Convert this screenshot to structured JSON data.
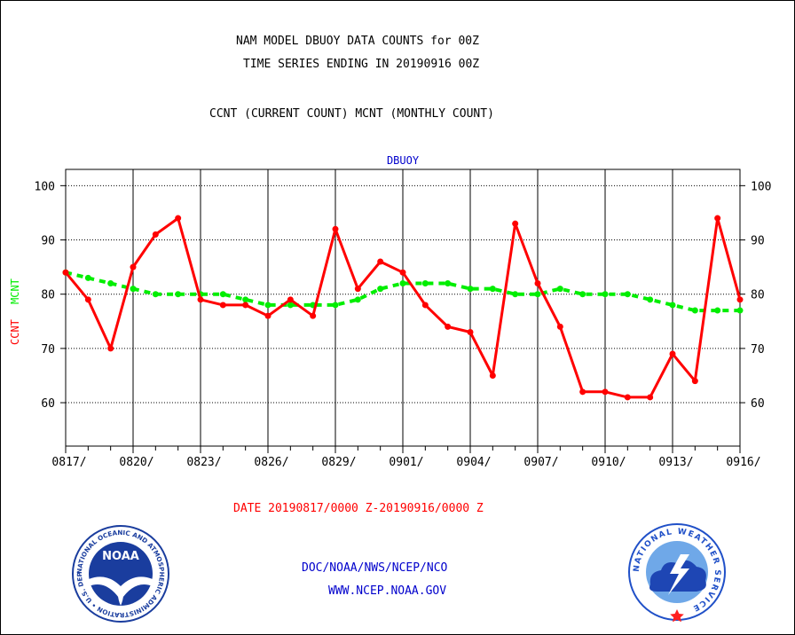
{
  "header": {
    "title_line1": "NAM MODEL DBUOY DATA COUNTS for 00Z",
    "title_line2": "TIME SERIES ENDING IN 20190916 00Z",
    "subtitle": "CCNT (CURRENT COUNT) MCNT (MONTHLY COUNT)"
  },
  "footer": {
    "date_range": "DATE 20190817/0000 Z-20190916/0000 Z",
    "org": "DOC/NOAA/NWS/NCEP/NCO",
    "url": "WWW.NCEP.NOAA.GOV"
  },
  "logos": {
    "noaa_text": "NOAA",
    "noaa_ring": "NATIONAL OCEANIC AND ATMOSPHERIC ADMINISTRATION • U.S. DEPARTMENT OF COMMERCE",
    "nws_ring": "NATIONAL WEATHER SERVICE"
  },
  "colors": {
    "ccnt": "#ff0000",
    "mcnt": "#00ee00",
    "plot_title": "#0000cc",
    "footer_blue": "#0000cc",
    "noaa_blue": "#1a3d9e",
    "nws_blue": "#2050c8"
  },
  "chart_data": {
    "type": "line",
    "title": "DBUOY",
    "ylabel_ccnt": "CCNT",
    "ylabel_mcnt": "MCNT",
    "ylim": [
      52,
      103
    ],
    "yticks": [
      60,
      70,
      80,
      90,
      100
    ],
    "x_days": 30,
    "x_tick_every": 3,
    "x_tick_labels": [
      "0817/",
      "0820/",
      "0823/",
      "0826/",
      "0829/",
      "0901/",
      "0904/",
      "0907/",
      "0910/",
      "0913/",
      "0916/"
    ],
    "grid": true,
    "series": [
      {
        "name": "CCNT",
        "values": [
          84,
          79,
          70,
          85,
          91,
          94,
          79,
          78,
          78,
          76,
          79,
          76,
          92,
          81,
          86,
          84,
          78,
          74,
          73,
          65,
          93,
          82,
          74,
          62,
          62,
          61,
          61,
          69,
          64,
          94,
          79
        ]
      },
      {
        "name": "MCNT",
        "values": [
          84,
          83,
          82,
          81,
          80,
          80,
          80,
          80,
          79,
          78,
          78,
          78,
          78,
          79,
          81,
          82,
          82,
          82,
          81,
          81,
          80,
          80,
          81,
          80,
          80,
          80,
          79,
          78,
          77,
          77,
          77
        ]
      }
    ]
  }
}
